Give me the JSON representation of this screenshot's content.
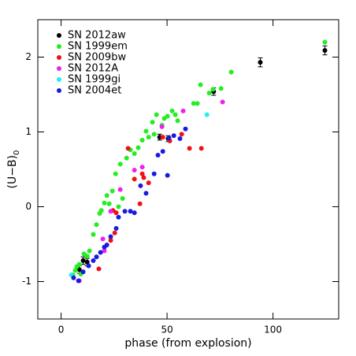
{
  "chart_data": {
    "type": "scatter",
    "xlabel": "phase (from explosion)",
    "ylabel": {
      "text": "(U−B)",
      "subscript": "0"
    },
    "xlim": [
      -11,
      131
    ],
    "ylim": [
      -1.5,
      2.5
    ],
    "xticks": [
      0,
      50,
      100
    ],
    "yticks": [
      -1,
      0,
      1,
      2
    ],
    "legend": "upper left",
    "series": [
      {
        "name": "SN 2012aw",
        "color": "#000000",
        "x": [
          10.4,
          12.3,
          8.6,
          46.5,
          50.5,
          72,
          94,
          124.5
        ],
        "values": [
          -0.72,
          -0.74,
          -0.84,
          0.93,
          0.91,
          1.54,
          1.93,
          2.09
        ],
        "errors": [
          0.05,
          0.05,
          0.05,
          0.04,
          0.04,
          0.05,
          0.06,
          0.06
        ]
      },
      {
        "name": "SN 1999em",
        "color": "#22ee22",
        "x": [
          5.6,
          6.7,
          7.4,
          8.6,
          9.3,
          10.8,
          12.3,
          13.4,
          15.2,
          16.7,
          18.2,
          19,
          20.4,
          21.6,
          22.7,
          24.2,
          25.7,
          27.1,
          27.9,
          29,
          30.9,
          32.7,
          34.6,
          36.4,
          38.3,
          40.1,
          41.3,
          43.1,
          43.9,
          45,
          47.6,
          48.7,
          50.2,
          52.4,
          53.9,
          55,
          62.5,
          64.3,
          65.8,
          69.9,
          71.7,
          75.5,
          80.3,
          124.5
        ],
        "values": [
          -0.91,
          -0.85,
          -0.8,
          -0.77,
          -0.9,
          -0.63,
          -0.66,
          -0.59,
          -0.37,
          -0.24,
          -0.09,
          -0.05,
          0.05,
          0.15,
          0.04,
          0.21,
          0.44,
          0,
          0.57,
          0.11,
          0.65,
          0.76,
          0.71,
          0.79,
          0.89,
          1.01,
          0.93,
          1.13,
          0.97,
          1.23,
          1.09,
          1.18,
          1.21,
          1.28,
          1.23,
          1.15,
          1.38,
          1.38,
          1.63,
          1.52,
          1.57,
          1.58,
          1.8,
          2.2
        ]
      },
      {
        "name": "SN 2009bw",
        "color": "#ee1111",
        "x": [
          17.8,
          23.4,
          24.5,
          26,
          25.3,
          31.6,
          34.6,
          37.2,
          38.3,
          39,
          41.3,
          48,
          51.3,
          56.9,
          60.6,
          66.2
        ],
        "values": [
          -0.83,
          -0.45,
          -0.05,
          -0.08,
          -0.35,
          0.78,
          0.37,
          0.04,
          0.44,
          0.39,
          0.32,
          0.93,
          0.88,
          0.97,
          0.78,
          0.78
        ]
      },
      {
        "name": "SN 2012A",
        "color": "#ee22ee",
        "x": [
          8.6,
          19.7,
          20.4,
          23.4,
          27.9,
          34.6,
          38.3,
          47.6,
          57.6,
          76.2
        ],
        "values": [
          -0.99,
          -0.43,
          -0.59,
          -0.06,
          0.23,
          0.49,
          0.53,
          1.07,
          1.28,
          1.4
        ]
      },
      {
        "name": "SN 1999gi",
        "color": "#22eeee",
        "x": [
          4.8,
          68.8
        ],
        "values": [
          -0.91,
          1.23
        ]
      },
      {
        "name": "SN 2004et",
        "color": "#1a1ae0",
        "x": [
          5.9,
          8.2,
          10.4,
          13,
          15.2,
          16.7,
          18.6,
          20.4,
          21.6,
          23.4,
          26,
          27.1,
          30.1,
          32.7,
          34.6,
          37.5,
          40.1,
          43.9,
          45.7,
          48,
          50.2,
          50.9,
          53.2,
          56.1,
          58.7
        ],
        "values": [
          -0.95,
          -0.99,
          -0.87,
          -0.79,
          -0.72,
          -0.67,
          -0.61,
          -0.54,
          -0.51,
          -0.4,
          -0.29,
          -0.14,
          -0.06,
          -0.06,
          -0.08,
          0.28,
          0.18,
          0.44,
          0.69,
          0.74,
          0.42,
          0.92,
          0.95,
          0.91,
          1.04
        ]
      }
    ]
  }
}
